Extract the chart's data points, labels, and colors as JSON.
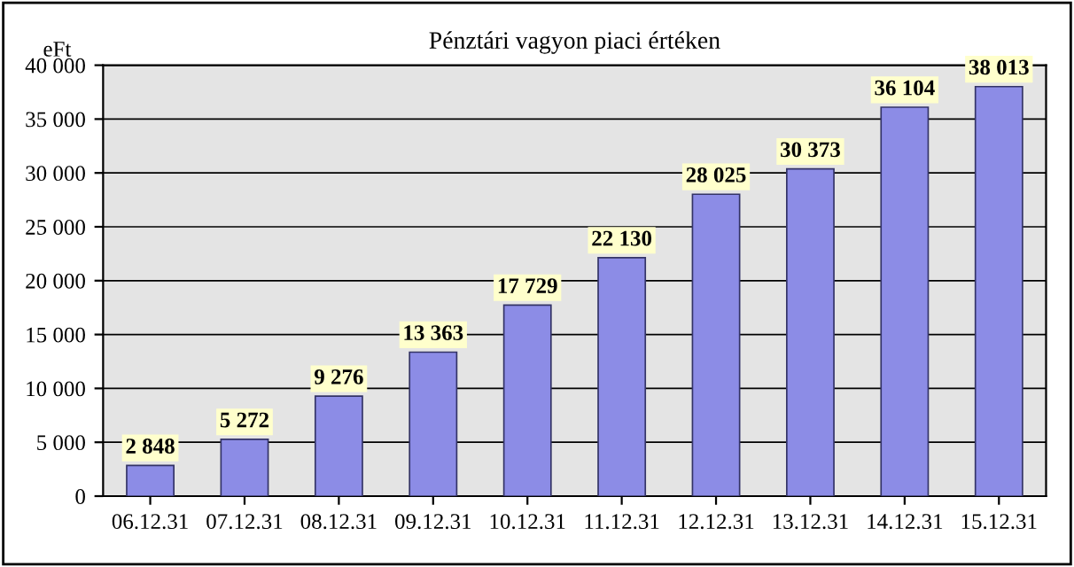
{
  "chart_data": {
    "type": "bar",
    "title": "Pénztári vagyon piaci értéken",
    "ylabel": "eFt",
    "categories": [
      "06.12.31",
      "07.12.31",
      "08.12.31",
      "09.12.31",
      "10.12.31",
      "11.12.31",
      "12.12.31",
      "13.12.31",
      "14.12.31",
      "15.12.31"
    ],
    "values": [
      2848,
      5272,
      9276,
      13363,
      17729,
      22130,
      28025,
      30373,
      36104,
      38013
    ],
    "value_labels": [
      "2 848",
      "5 272",
      "9 276",
      "13 363",
      "17 729",
      "22 130",
      "28 025",
      "30 373",
      "36 104",
      "38 013"
    ],
    "color": "#8c8ce6",
    "ylim": [
      0,
      40000
    ],
    "yticks": [
      0,
      {
        "value": 5000,
        "label": "5 000"
      },
      {
        "value": 10000,
        "label": "10 000"
      },
      {
        "value": 15000,
        "label": "15 000"
      },
      {
        "value": 20000,
        "label": "20 000"
      },
      {
        "value": 25000,
        "label": "25 000"
      },
      {
        "value": 30000,
        "label": "30 000"
      },
      {
        "value": 35000,
        "label": "35 000"
      },
      {
        "value": 40000,
        "label": "40 000"
      }
    ],
    "grid": "y",
    "legend": false
  }
}
